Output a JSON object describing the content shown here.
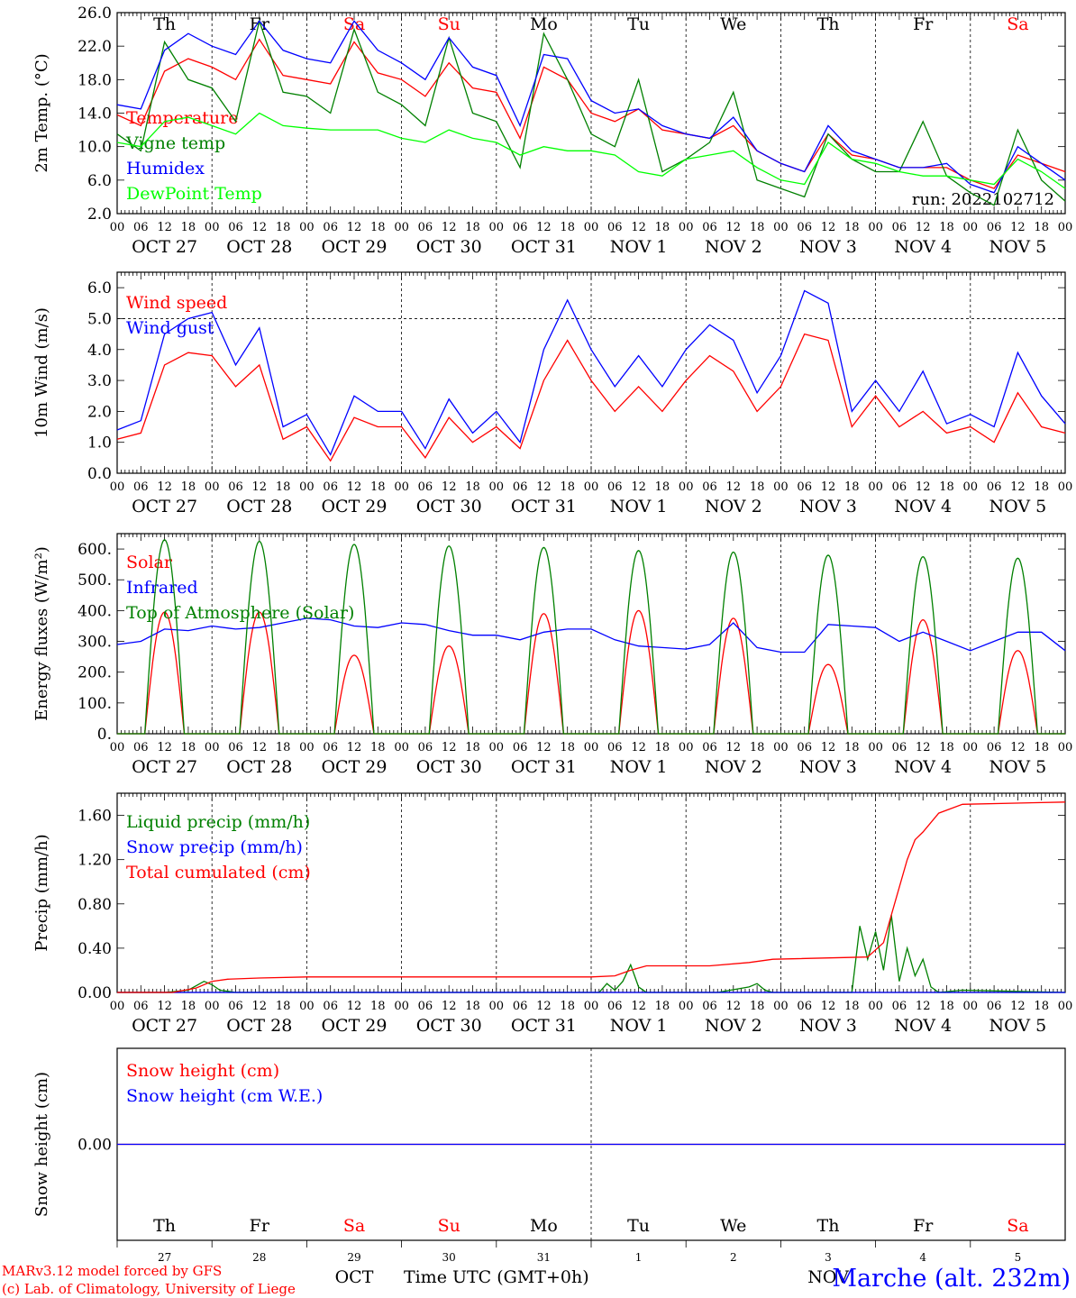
{
  "chart_data": [
    {
      "type": "line",
      "ylabel": "2m Temp. (°C)",
      "ylim": [
        2,
        26
      ],
      "yticks": [
        "2.0",
        "6.0",
        "10.0",
        "14.0",
        "18.0",
        "22.0",
        "26.0"
      ],
      "ytick_values": [
        2,
        6,
        10,
        14,
        18,
        22,
        26
      ],
      "annotation": "run: 2022102712",
      "weekday_labels": [
        "Th",
        "Fr",
        "Sa",
        "Su",
        "Mo",
        "Tu",
        "We",
        "Th",
        "Fr",
        "Sa"
      ],
      "x_hours": [
        0,
        6,
        12,
        18,
        24,
        30,
        36,
        42,
        48,
        54,
        60,
        66,
        72,
        78,
        84,
        90,
        96,
        102,
        108,
        114,
        120,
        126,
        132,
        138,
        144,
        150,
        156,
        162,
        168,
        174,
        180,
        186,
        192,
        198,
        204,
        210,
        216,
        222,
        228,
        234,
        240
      ],
      "series": [
        {
          "name": "Temperature",
          "color": "#ff0000",
          "values": [
            13.8,
            12.5,
            19.0,
            20.5,
            19.5,
            18.0,
            22.8,
            18.5,
            18.0,
            17.5,
            22.5,
            18.8,
            18.0,
            16.0,
            20.0,
            17.0,
            16.5,
            11.0,
            19.5,
            18.0,
            14.0,
            13.0,
            14.5,
            12.0,
            11.5,
            11.0,
            12.5,
            9.5,
            8.0,
            7.0,
            11.5,
            9.0,
            8.5,
            7.5,
            7.5,
            7.5,
            6.0,
            5.0,
            9.0,
            8.0,
            7.0
          ]
        },
        {
          "name": "Vigne temp",
          "color": "#008000",
          "values": [
            11.5,
            9.5,
            22.5,
            18.0,
            17.0,
            13.0,
            25.0,
            16.5,
            16.0,
            14.0,
            24.0,
            16.5,
            15.0,
            12.5,
            23.0,
            14.0,
            13.0,
            7.5,
            23.5,
            18.0,
            11.5,
            10.0,
            18.0,
            7.0,
            8.5,
            10.5,
            16.5,
            6.0,
            5.0,
            4.0,
            11.5,
            8.5,
            7.0,
            7.0,
            13.0,
            6.5,
            4.5,
            3.0,
            12.0,
            6.0,
            3.5
          ]
        },
        {
          "name": "Humidex",
          "color": "#0000ff",
          "values": [
            15.0,
            14.5,
            21.5,
            23.5,
            22.0,
            21.0,
            25.0,
            21.5,
            20.5,
            20.0,
            25.0,
            21.5,
            20.0,
            18.0,
            23.0,
            19.5,
            18.5,
            12.5,
            21.0,
            20.5,
            15.5,
            14.0,
            14.5,
            12.5,
            11.5,
            11.0,
            13.5,
            9.5,
            8.0,
            7.0,
            12.5,
            9.5,
            8.5,
            7.5,
            7.5,
            8.0,
            5.5,
            4.5,
            10.0,
            8.0,
            6.0
          ]
        },
        {
          "name": "DewPoint Temp",
          "color": "#00ff00",
          "values": [
            10.5,
            10.0,
            13.0,
            13.5,
            12.5,
            11.5,
            14.0,
            12.5,
            12.2,
            12.0,
            12.0,
            12.0,
            11.0,
            10.5,
            12.0,
            11.0,
            10.5,
            9.0,
            10.0,
            9.5,
            9.5,
            9.0,
            7.0,
            6.5,
            8.5,
            9.0,
            9.5,
            7.5,
            6.0,
            5.5,
            10.5,
            8.5,
            8.0,
            7.0,
            6.5,
            6.5,
            6.0,
            5.5,
            8.5,
            7.0,
            5.0
          ]
        }
      ]
    },
    {
      "type": "line",
      "ylabel": "10m Wind (m/s)",
      "ylim": [
        0,
        6.5
      ],
      "yticks": [
        "0.0",
        "1.0",
        "2.0",
        "3.0",
        "4.0",
        "5.0",
        "6.0"
      ],
      "ytick_values": [
        0,
        1,
        2,
        3,
        4,
        5,
        6
      ],
      "x_hours": [
        0,
        6,
        12,
        18,
        24,
        30,
        36,
        42,
        48,
        54,
        60,
        66,
        72,
        78,
        84,
        90,
        96,
        102,
        108,
        114,
        120,
        126,
        132,
        138,
        144,
        150,
        156,
        162,
        168,
        174,
        180,
        186,
        192,
        198,
        204,
        210,
        216,
        222,
        228,
        234,
        240
      ],
      "series": [
        {
          "name": "Wind speed",
          "color": "#ff0000",
          "values": [
            1.1,
            1.3,
            3.5,
            3.9,
            3.8,
            2.8,
            3.5,
            1.1,
            1.5,
            0.4,
            1.8,
            1.5,
            1.5,
            0.5,
            1.8,
            1.0,
            1.5,
            0.8,
            3.0,
            4.3,
            3.0,
            2.0,
            2.8,
            2.0,
            3.0,
            3.8,
            3.3,
            2.0,
            2.8,
            4.5,
            4.3,
            1.5,
            2.5,
            1.5,
            2.0,
            1.3,
            1.5,
            1.0,
            2.6,
            1.5,
            1.3
          ]
        },
        {
          "name": "Wind gust",
          "color": "#0000ff",
          "values": [
            1.4,
            1.7,
            4.5,
            5.0,
            5.2,
            3.5,
            4.7,
            1.5,
            1.9,
            0.6,
            2.5,
            2.0,
            2.0,
            0.8,
            2.4,
            1.3,
            2.0,
            1.0,
            4.0,
            5.6,
            4.0,
            2.8,
            3.8,
            2.8,
            4.0,
            4.8,
            4.3,
            2.6,
            3.8,
            5.9,
            5.5,
            2.0,
            3.0,
            2.0,
            3.3,
            1.6,
            1.9,
            1.5,
            3.9,
            2.5,
            1.6
          ]
        }
      ]
    },
    {
      "type": "line",
      "ylabel": "Energy fluxes (W/m²)",
      "ylim": [
        0,
        650
      ],
      "yticks": [
        "0.",
        "100.",
        "200.",
        "300.",
        "400.",
        "500.",
        "600."
      ],
      "ytick_values": [
        0,
        100,
        200,
        300,
        400,
        500,
        600
      ],
      "x_hours": [
        0,
        6,
        12,
        18,
        24,
        30,
        36,
        42,
        48,
        54,
        60,
        66,
        72,
        78,
        84,
        90,
        96,
        102,
        108,
        114,
        120,
        126,
        132,
        138,
        144,
        150,
        156,
        162,
        168,
        174,
        180,
        186,
        192,
        198,
        204,
        210,
        216,
        222,
        228,
        234,
        240
      ],
      "series": [
        {
          "name": "Solar",
          "color": "#ff0000",
          "solar_peaks": [
            {
              "day": 0,
              "peak": 395
            },
            {
              "day": 1,
              "peak": 395
            },
            {
              "day": 2,
              "peak": 255
            },
            {
              "day": 3,
              "peak": 285
            },
            {
              "day": 4,
              "peak": 390
            },
            {
              "day": 5,
              "peak": 400
            },
            {
              "day": 6,
              "peak": 375
            },
            {
              "day": 7,
              "peak": 225
            },
            {
              "day": 8,
              "peak": 370
            },
            {
              "day": 9,
              "peak": 270
            }
          ]
        },
        {
          "name": "Infrared",
          "color": "#0000ff",
          "values": [
            290,
            300,
            340,
            335,
            350,
            340,
            345,
            360,
            375,
            370,
            350,
            345,
            360,
            355,
            335,
            320,
            320,
            305,
            330,
            340,
            340,
            305,
            285,
            280,
            275,
            290,
            360,
            280,
            265,
            265,
            355,
            350,
            345,
            300,
            330,
            300,
            270,
            300,
            330,
            330,
            270
          ]
        },
        {
          "name": "Top of Atmosphere (Solar)",
          "color": "#008000",
          "solar_peaks": [
            {
              "day": 0,
              "peak": 630
            },
            {
              "day": 1,
              "peak": 625
            },
            {
              "day": 2,
              "peak": 615
            },
            {
              "day": 3,
              "peak": 610
            },
            {
              "day": 4,
              "peak": 605
            },
            {
              "day": 5,
              "peak": 595
            },
            {
              "day": 6,
              "peak": 590
            },
            {
              "day": 7,
              "peak": 580
            },
            {
              "day": 8,
              "peak": 575
            },
            {
              "day": 9,
              "peak": 570
            }
          ]
        }
      ]
    },
    {
      "type": "line",
      "ylabel": "Precip (mm/h)",
      "ylim": [
        0,
        1.8
      ],
      "yticks": [
        "0.00",
        "0.40",
        "0.80",
        "1.20",
        "1.60"
      ],
      "ytick_values": [
        0,
        0.4,
        0.8,
        1.2,
        1.6
      ],
      "series": [
        {
          "name": "Liquid precip (mm/h)",
          "color": "#008000",
          "x": [
            0,
            12,
            18,
            20,
            22,
            24,
            26,
            30,
            122,
            124,
            126,
            128,
            130,
            132,
            134,
            140,
            152,
            160,
            162,
            164,
            166,
            168,
            186,
            188,
            190,
            192,
            194,
            196,
            198,
            200,
            202,
            204,
            206,
            208,
            214,
            240
          ],
          "values": [
            0,
            0,
            0.02,
            0.06,
            0.1,
            0.07,
            0.02,
            0,
            0,
            0.08,
            0.02,
            0.1,
            0.25,
            0.05,
            0,
            0,
            0,
            0.05,
            0.08,
            0.02,
            0,
            0,
            0,
            0.6,
            0.3,
            0.55,
            0.2,
            0.7,
            0.1,
            0.4,
            0.15,
            0.3,
            0.05,
            0,
            0.02,
            0
          ]
        },
        {
          "name": "Snow precip (mm/h)",
          "color": "#0000ff",
          "x": [
            0,
            240
          ],
          "values": [
            0,
            0
          ]
        },
        {
          "name": "Total cumulated (cm)",
          "color": "#ff0000",
          "x": [
            0,
            14,
            20,
            24,
            28,
            36,
            48,
            96,
            120,
            126,
            130,
            134,
            150,
            160,
            166,
            190,
            194,
            196,
            200,
            202,
            204,
            208,
            214,
            240
          ],
          "values": [
            0,
            0,
            0.04,
            0.1,
            0.12,
            0.13,
            0.14,
            0.14,
            0.14,
            0.15,
            0.2,
            0.24,
            0.24,
            0.27,
            0.3,
            0.32,
            0.45,
            0.7,
            1.2,
            1.38,
            1.45,
            1.62,
            1.7,
            1.72
          ]
        }
      ]
    },
    {
      "type": "line",
      "ylabel": "Snow height (cm)",
      "ylim": [
        -1,
        1
      ],
      "yticks": [
        "0.00"
      ],
      "ytick_values": [
        0
      ],
      "series": [
        {
          "name": "Snow height (cm)",
          "color": "#ff0000",
          "x": [
            0,
            240
          ],
          "values": [
            0,
            0
          ]
        },
        {
          "name": "Snow height (cm W.E.)",
          "color": "#0000ff",
          "x": [
            0,
            240
          ],
          "values": [
            0,
            0
          ]
        }
      ]
    }
  ],
  "x_axis": {
    "hour_labels": [
      "00",
      "06",
      "12",
      "18"
    ],
    "end_label": "00",
    "date_labels": [
      "OCT 27",
      "OCT 28",
      "OCT 29",
      "OCT 30",
      "OCT 31",
      "NOV  1",
      "NOV  2",
      "NOV  3",
      "NOV  4",
      "NOV  5"
    ],
    "weekday_labels": [
      "Th",
      "Fr",
      "Sa",
      "Su",
      "Mo",
      "Tu",
      "We",
      "Th",
      "Fr",
      "Sa"
    ],
    "weekend_color": "#ff0000",
    "bottom_day_numbers": [
      "27",
      "28",
      "29",
      "30",
      "31",
      "1",
      "2",
      "3",
      "4",
      "5"
    ],
    "bottom_months": [
      "OCT",
      "NOV"
    ],
    "xlabel": "Time UTC (GMT+0h)"
  },
  "footer": {
    "credit_line1": "MARv3.12 model forced by GFS",
    "credit_line2": "(c) Lab. of Climatology, University of Liege",
    "location": "Marche (alt. 232m)",
    "credit_color": "#ff0000",
    "location_color": "#0000ff"
  }
}
